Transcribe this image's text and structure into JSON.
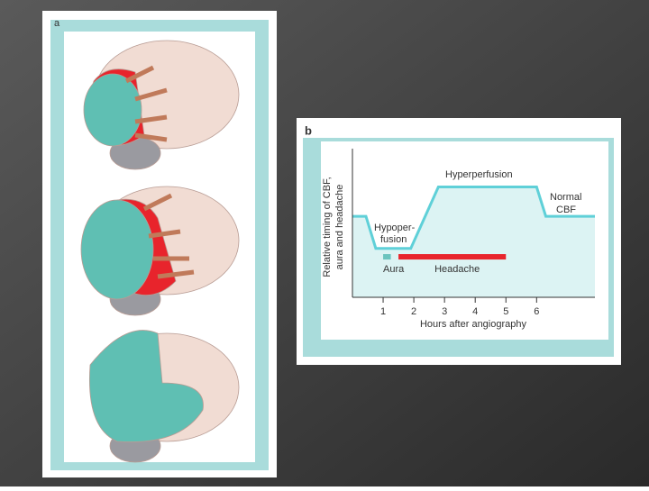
{
  "panel_labels": [
    "a",
    "b"
  ],
  "chart_data": {
    "type": "line",
    "x": [
      0,
      0.44,
      0.76,
      1.9,
      2.8,
      6.0,
      6.3,
      7.9
    ],
    "values": [
      5.8,
      5.8,
      3.5,
      3.5,
      7.9,
      7.9,
      5.8,
      5.8
    ],
    "color": "#5fd0d8",
    "fill": "#dcf3f3",
    "xlim": [
      0,
      7.9
    ],
    "xticks": [
      1,
      2,
      3,
      4,
      5,
      6
    ],
    "ylim": [
      0,
      10
    ],
    "xlabel": "Hours after angiography",
    "ylabel": [
      "Relative timing of CBF,",
      "aura and headache"
    ],
    "bars": [
      {
        "label": "Aura",
        "x": [
          1,
          1.25
        ],
        "y": 2.9,
        "color": "#6cc4be"
      },
      {
        "label": "Headache",
        "x": [
          1.5,
          5.0
        ],
        "y": 2.9,
        "color": "#e8242c"
      }
    ],
    "annotations": {
      "hyperperfusion": "Hyperperfusion",
      "normal": [
        "Normal",
        "CBF"
      ],
      "hypoperfusion": [
        "Hypoper-",
        "fusion"
      ]
    }
  }
}
